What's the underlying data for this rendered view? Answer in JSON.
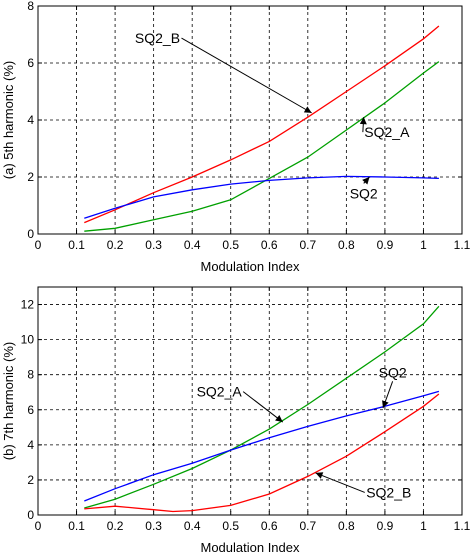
{
  "chart_data": [
    {
      "type": "line",
      "title": "",
      "xlabel": "Modulation Index",
      "ylabel": "(a) 5th harmonic (%)",
      "xlim": [
        0,
        1.1
      ],
      "ylim": [
        0,
        8
      ],
      "xticks": [
        0,
        0.1,
        0.2,
        0.3,
        0.4,
        0.5,
        0.6,
        0.7,
        0.8,
        0.9,
        1,
        1.1
      ],
      "xtick_labels": [
        "0",
        "0.1",
        "0.2",
        "0.3",
        "0.4",
        "0.5",
        "0.6",
        "0.7",
        "0.8",
        "0.9",
        "1",
        "1.1"
      ],
      "yticks": [
        0,
        2,
        4,
        6,
        8
      ],
      "ytick_labels": [
        "0",
        "2",
        "4",
        "6",
        "8"
      ],
      "grid": true,
      "series": [
        {
          "name": "SQ2_B",
          "color": "#ff0000",
          "x": [
            0.12,
            0.2,
            0.3,
            0.4,
            0.5,
            0.6,
            0.7,
            0.8,
            0.9,
            1.0,
            1.04
          ],
          "y": [
            0.4,
            0.85,
            1.45,
            2.0,
            2.6,
            3.25,
            4.1,
            5.0,
            5.9,
            6.85,
            7.3
          ]
        },
        {
          "name": "SQ2_A",
          "color": "#00a000",
          "x": [
            0.12,
            0.2,
            0.3,
            0.4,
            0.5,
            0.6,
            0.7,
            0.8,
            0.9,
            1.0,
            1.04
          ],
          "y": [
            0.1,
            0.2,
            0.5,
            0.8,
            1.2,
            1.95,
            2.7,
            3.65,
            4.6,
            5.65,
            6.05
          ]
        },
        {
          "name": "SQ2",
          "color": "#0000ff",
          "x": [
            0.12,
            0.2,
            0.3,
            0.4,
            0.5,
            0.6,
            0.7,
            0.8,
            0.9,
            1.0,
            1.04
          ],
          "y": [
            0.55,
            0.9,
            1.3,
            1.55,
            1.75,
            1.88,
            1.97,
            2.02,
            2.0,
            1.97,
            1.95
          ]
        }
      ],
      "annotations": [
        {
          "text": "SQ2_B",
          "series": "SQ2_B",
          "at_x": 0.71,
          "at_y": 4.25,
          "text_x": 0.31,
          "text_y": 6.7
        },
        {
          "text": "SQ2_A",
          "series": "SQ2_A",
          "at_x": 0.845,
          "at_y": 4.1,
          "text_x": 0.905,
          "text_y": 3.4
        },
        {
          "text": "SQ2",
          "series": "SQ2",
          "at_x": 0.86,
          "at_y": 2.0,
          "text_x": 0.845,
          "text_y": 1.25
        }
      ]
    },
    {
      "type": "line",
      "title": "",
      "xlabel": "Modulation Index",
      "ylabel": "(b) 7th harmonic (%)",
      "xlim": [
        0,
        1.1
      ],
      "ylim": [
        0,
        13
      ],
      "xticks": [
        0,
        0.1,
        0.2,
        0.3,
        0.4,
        0.5,
        0.6,
        0.7,
        0.8,
        0.9,
        1,
        1.1
      ],
      "xtick_labels": [
        "0",
        "0.1",
        "0.2",
        "0.3",
        "0.4",
        "0.5",
        "0.6",
        "0.7",
        "0.8",
        "0.9",
        "1",
        "1.1"
      ],
      "yticks": [
        0,
        2,
        4,
        6,
        8,
        10,
        12
      ],
      "ytick_labels": [
        "0",
        "2",
        "4",
        "6",
        "8",
        "10",
        "12"
      ],
      "grid": true,
      "series": [
        {
          "name": "SQ2_A",
          "color": "#00a000",
          "x": [
            0.12,
            0.2,
            0.3,
            0.4,
            0.5,
            0.6,
            0.7,
            0.8,
            0.9,
            1.0,
            1.04
          ],
          "y": [
            0.4,
            0.9,
            1.75,
            2.65,
            3.7,
            4.9,
            6.3,
            7.8,
            9.3,
            10.9,
            11.9
          ]
        },
        {
          "name": "SQ2",
          "color": "#0000ff",
          "x": [
            0.12,
            0.2,
            0.3,
            0.4,
            0.5,
            0.6,
            0.7,
            0.8,
            0.9,
            1.0,
            1.04
          ],
          "y": [
            0.8,
            1.5,
            2.3,
            2.95,
            3.7,
            4.4,
            5.05,
            5.65,
            6.2,
            6.8,
            7.05
          ]
        },
        {
          "name": "SQ2_B",
          "color": "#ff0000",
          "x": [
            0.12,
            0.2,
            0.3,
            0.35,
            0.4,
            0.5,
            0.6,
            0.7,
            0.8,
            0.9,
            1.0,
            1.04
          ],
          "y": [
            0.35,
            0.5,
            0.3,
            0.2,
            0.25,
            0.55,
            1.2,
            2.2,
            3.35,
            4.75,
            6.2,
            6.9
          ]
        }
      ],
      "annotations": [
        {
          "text": "SQ2_A",
          "series": "SQ2_A",
          "at_x": 0.635,
          "at_y": 5.3,
          "text_x": 0.47,
          "text_y": 6.75
        },
        {
          "text": "SQ2",
          "series": "SQ2",
          "at_x": 0.895,
          "at_y": 6.1,
          "text_x": 0.92,
          "text_y": 7.85
        },
        {
          "text": "SQ2_B",
          "series": "SQ2_B",
          "at_x": 0.72,
          "at_y": 2.4,
          "text_x": 0.91,
          "text_y": 1.0
        }
      ]
    }
  ]
}
